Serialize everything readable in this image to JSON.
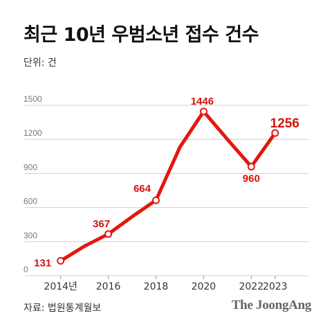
{
  "title": "최근 10년 우범소년 접수 건수",
  "unit_label": "단위: 건",
  "source_label": "자료: 법원통계월보",
  "brand": "The JoongAng",
  "colors": {
    "line": "#e4160f",
    "label": "#d4140d",
    "grid": "#cfcfcf",
    "axis_text": "#777777"
  },
  "chart_data": {
    "type": "line",
    "title": "최근 10년 우범소년 접수 건수",
    "xlabel": "",
    "ylabel": "",
    "x": [
      2014,
      2015,
      2016,
      2017,
      2018,
      2019,
      2020,
      2021,
      2022,
      2023
    ],
    "values": [
      131,
      260,
      367,
      520,
      664,
      1130,
      1446,
      1200,
      960,
      1256
    ],
    "labeled_points": [
      {
        "x": 2014,
        "label": "131"
      },
      {
        "x": 2016,
        "label": "367"
      },
      {
        "x": 2018,
        "label": "664"
      },
      {
        "x": 2020,
        "label": "1446"
      },
      {
        "x": 2022,
        "label": "960"
      },
      {
        "x": 2023,
        "label": "1256"
      }
    ],
    "x_ticks": [
      {
        "x": 2014,
        "label": "2014년"
      },
      {
        "x": 2016,
        "label": "2016"
      },
      {
        "x": 2018,
        "label": "2018"
      },
      {
        "x": 2020,
        "label": "2020"
      },
      {
        "x": 2022,
        "label": "2022"
      },
      {
        "x": 2023,
        "label": "2023"
      }
    ],
    "y_ticks": [
      0,
      300,
      600,
      900,
      1200,
      1500
    ],
    "ylim": [
      0,
      1500
    ],
    "xlim": [
      2012.5,
      2024.4
    ],
    "grid": true
  }
}
